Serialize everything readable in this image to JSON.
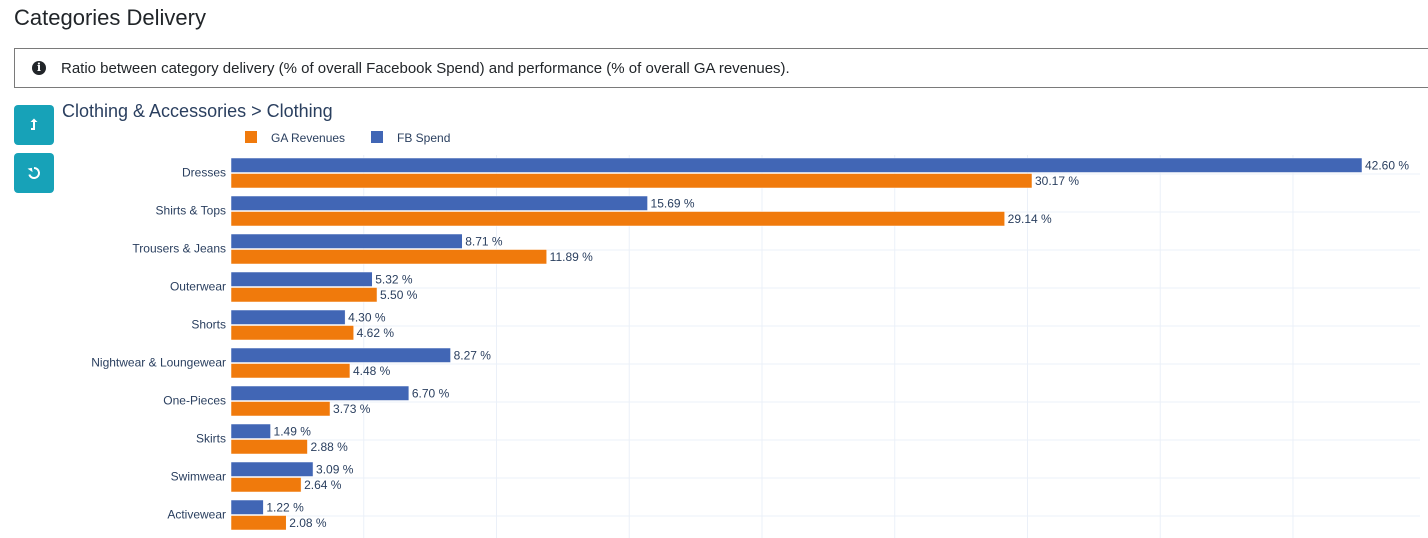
{
  "header": {
    "title": "Categories Delivery"
  },
  "info": {
    "icon": "info-circle-icon",
    "text": "Ratio between category delivery (% of overall Facebook Spend) and performance (% of overall GA revenues)."
  },
  "toolbar": {
    "up_icon": "level-up-icon",
    "reset_icon": "undo-icon"
  },
  "breadcrumb": {
    "text": "Clothing & Accessories > Clothing"
  },
  "chart_data": {
    "type": "bar",
    "orientation": "horizontal",
    "categories": [
      "Dresses",
      "Shirts & Tops",
      "Trousers & Jeans",
      "Outerwear",
      "Shorts",
      "Nightwear & Loungewear",
      "One-Pieces",
      "Skirts",
      "Swimwear",
      "Activewear"
    ],
    "series": [
      {
        "name": "FB Spend",
        "color": "#4166b5",
        "values": [
          42.6,
          15.69,
          8.71,
          5.32,
          4.3,
          8.27,
          6.7,
          1.49,
          3.09,
          1.22
        ],
        "labels": [
          "42.60 %",
          "15.69 %",
          "8.71 %",
          "5.32 %",
          "4.30 %",
          "8.27 %",
          "6.70 %",
          "1.49 %",
          "3.09 %",
          "1.22 %"
        ]
      },
      {
        "name": "GA Revenues",
        "color": "#f07a0c",
        "values": [
          30.17,
          29.14,
          11.89,
          5.5,
          4.62,
          4.48,
          3.73,
          2.88,
          2.64,
          2.08
        ],
        "labels": [
          "30.17 %",
          "29.14 %",
          "11.89 %",
          "5.50 %",
          "4.62 %",
          "4.48 %",
          "3.73 %",
          "2.88 %",
          "2.64 %",
          "2.08 %"
        ]
      }
    ],
    "legend_order": [
      "GA Revenues",
      "FB Spend"
    ],
    "legend_position": "top-left",
    "xlim": [
      0,
      45
    ],
    "x_grid_step": 5,
    "grid": true,
    "title": "",
    "xlabel": "",
    "ylabel": ""
  }
}
